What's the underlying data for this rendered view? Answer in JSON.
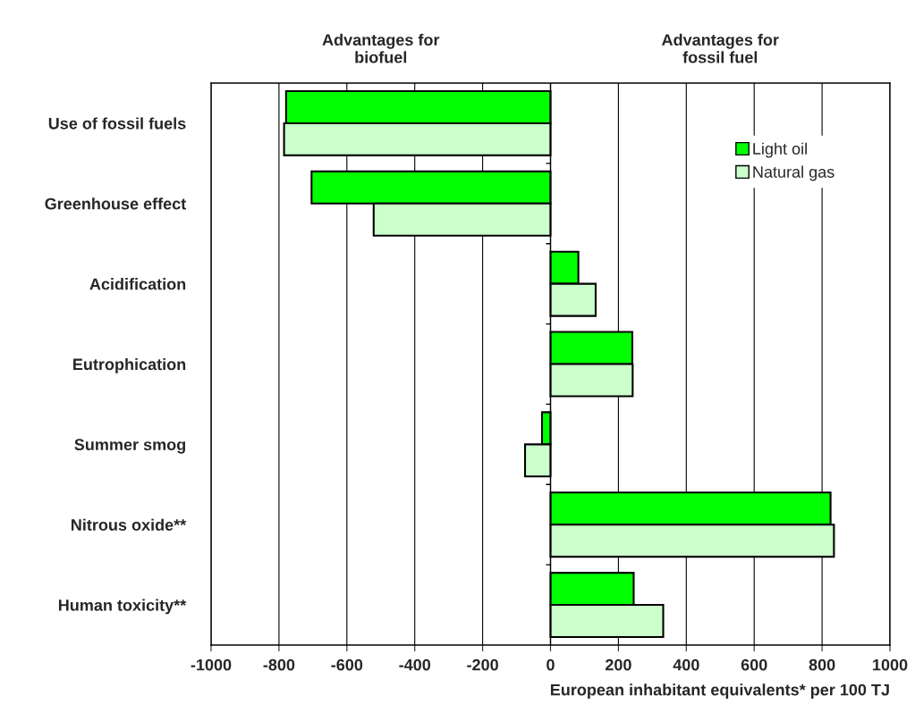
{
  "chart_data": {
    "type": "bar",
    "orientation": "horizontal",
    "categories": [
      "Use of fossil fuels",
      "Greenhouse effect",
      "Acidification",
      "Eutrophication",
      "Summer smog",
      "Nitrous oxide**",
      "Human toxicity**"
    ],
    "series": [
      {
        "name": "Light oil",
        "color": "#00ff00",
        "values": [
          -779,
          -704,
          82,
          241,
          -25,
          825,
          245
        ]
      },
      {
        "name": "Natural gas",
        "color": "#ccffcc",
        "values": [
          -785,
          -521,
          133,
          242,
          -75,
          835,
          332
        ]
      }
    ],
    "xlim": [
      -1000,
      1000
    ],
    "xticks": [
      -1000,
      -800,
      -600,
      -400,
      -200,
      0,
      200,
      400,
      600,
      800,
      1000
    ],
    "xlabel": "European inhabitant equivalents* per 100 TJ",
    "annotations": [
      "Advantages for\nbiofuel",
      "Advantages for\nfossil fuel"
    ],
    "grid": "x",
    "legend": "top right"
  }
}
